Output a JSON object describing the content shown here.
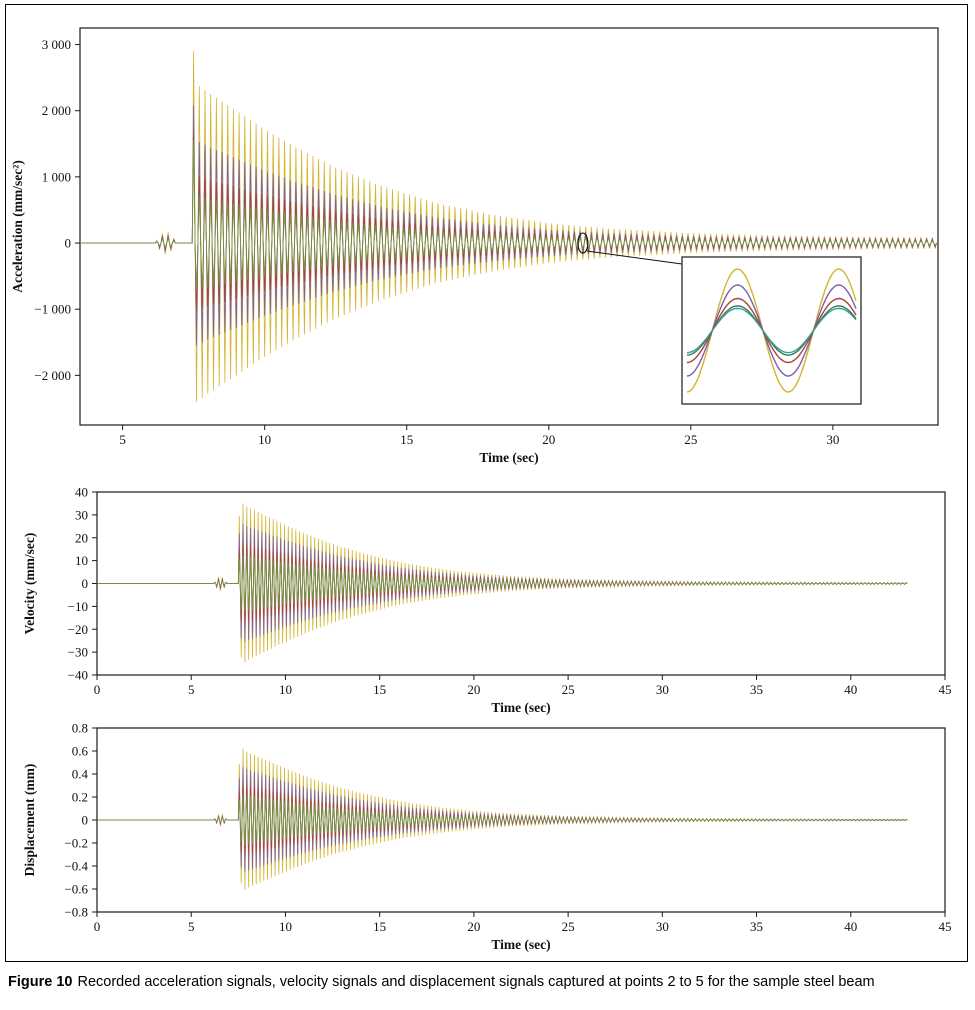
{
  "figure": {
    "caption_label": "Figure 10",
    "caption_text": "Recorded acceleration signals, velocity signals and displacement signals captured at points 2 to 5 for the sample steel beam"
  },
  "chart_data": [
    {
      "id": "acceleration",
      "type": "line",
      "title": "",
      "xlabel": "Time (sec)",
      "ylabel": "Acceleration (mm/sec²)",
      "xlim": [
        3.5,
        33.7
      ],
      "ylim": [
        -2750,
        3250
      ],
      "xticks": [
        5,
        10,
        15,
        20,
        25,
        30
      ],
      "xtick_labels": [
        "5",
        "10",
        "15",
        "20",
        "25",
        "30"
      ],
      "yticks": [
        -2000,
        -1000,
        0,
        1000,
        2000,
        3000
      ],
      "ytick_labels": [
        "−2 000",
        "−1 000",
        "0",
        "1 000",
        "2 000",
        "3 000"
      ],
      "grid": false,
      "legend": null,
      "frequency_hz": 5.0,
      "burst_time": 7.45,
      "data_start": 3.5,
      "data_end": 33.7,
      "blip": {
        "t_start": 6.15,
        "t_end": 6.9
      },
      "series": [
        {
          "name": "Point 2",
          "color": "#d4b42e",
          "blip_amp": 170,
          "envelope_t": [
            7.45,
            7.6,
            8.0,
            9.0,
            10.0,
            11.0,
            12.5,
            14.0,
            16.0,
            18.0,
            20.0,
            22.0,
            25.0,
            28.0,
            31.0,
            33.7
          ],
          "envelope_a": [
            3150,
            2400,
            2280,
            2000,
            1720,
            1470,
            1140,
            880,
            610,
            430,
            300,
            220,
            150,
            115,
            95,
            85
          ]
        },
        {
          "name": "Point 3",
          "color": "#7d5fa6",
          "blip_amp": 130,
          "envelope_t": [
            7.45,
            7.6,
            8.0,
            9.0,
            10.0,
            11.0,
            12.5,
            14.0,
            16.0,
            18.0,
            20.0,
            22.0,
            25.0,
            28.0,
            31.0,
            33.7
          ],
          "envelope_a": [
            2350,
            1550,
            1460,
            1280,
            1100,
            940,
            730,
            560,
            390,
            280,
            200,
            150,
            105,
            80,
            68,
            62
          ]
        },
        {
          "name": "Point 4",
          "color": "#a8423a",
          "blip_amp": 95,
          "envelope_t": [
            7.45,
            7.6,
            8.0,
            9.0,
            10.0,
            11.0,
            12.5,
            14.0,
            16.0,
            18.0,
            20.0,
            22.0,
            25.0,
            28.0,
            31.0,
            33.7
          ],
          "envelope_a": [
            1900,
            1020,
            960,
            845,
            730,
            625,
            485,
            375,
            260,
            185,
            135,
            100,
            72,
            56,
            48,
            44
          ]
        },
        {
          "name": "Point 5",
          "color": "#6e9b42",
          "blip_amp": 70,
          "envelope_t": [
            7.45,
            7.6,
            8.0,
            9.0,
            10.0,
            11.0,
            12.5,
            14.0,
            16.0,
            18.0,
            20.0,
            22.0,
            25.0,
            28.0,
            31.0,
            33.7
          ],
          "envelope_a": [
            1950,
            720,
            675,
            590,
            510,
            435,
            340,
            262,
            182,
            130,
            95,
            72,
            52,
            42,
            36,
            33
          ]
        }
      ],
      "annotation": {
        "ellipse_t": 21.2
      },
      "inset": {
        "description": "zoomed view of oscillations near t = 21 sec",
        "cycles": 1.67,
        "phase": -1.5708,
        "colors": [
          "#d4b42e",
          "#7d5fa6",
          "#a8423a",
          "#2f7d5b",
          "#3f9e8f"
        ],
        "amplitudes": [
          1.0,
          0.74,
          0.52,
          0.4,
          0.36
        ]
      }
    },
    {
      "id": "velocity",
      "type": "line",
      "title": "",
      "xlabel": "Time (sec)",
      "ylabel": "Velocity (mm/sec)",
      "xlim": [
        0,
        45
      ],
      "ylim": [
        -40,
        40
      ],
      "xticks": [
        0,
        5,
        10,
        15,
        20,
        25,
        30,
        35,
        40,
        45
      ],
      "xtick_labels": [
        "0",
        "5",
        "10",
        "15",
        "20",
        "25",
        "30",
        "35",
        "40",
        "45"
      ],
      "yticks": [
        -40,
        -30,
        -20,
        -10,
        0,
        10,
        20,
        30,
        40
      ],
      "ytick_labels": [
        "−40",
        "−30",
        "−20",
        "−10",
        "0",
        "10",
        "20",
        "30",
        "40"
      ],
      "grid": false,
      "legend": null,
      "frequency_hz": 5.0,
      "burst_time": 7.5,
      "data_start": 0,
      "data_end": 43,
      "blip": {
        "t_start": 6.2,
        "t_end": 6.9
      },
      "series": [
        {
          "name": "Point 2",
          "color": "#d4b42e",
          "blip_amp": 3.2,
          "envelope_t": [
            7.5,
            7.75,
            8.0,
            9.0,
            10.0,
            11.0,
            12.5,
            14.0,
            16.0,
            18.0,
            20.0,
            22.0,
            25.0,
            28.0,
            32.0,
            36.0,
            40.0,
            43.0
          ],
          "envelope_a": [
            28,
            35,
            33.5,
            29.5,
            25.5,
            22,
            17.2,
            13.5,
            9.4,
            6.6,
            4.6,
            3.3,
            2.0,
            1.3,
            0.85,
            0.6,
            0.5,
            0.45
          ]
        },
        {
          "name": "Point 3",
          "color": "#7d5fa6",
          "blip_amp": 2.4,
          "envelope_t": [
            7.5,
            7.75,
            8.0,
            9.0,
            10.0,
            11.0,
            12.5,
            14.0,
            16.0,
            18.0,
            20.0,
            22.0,
            25.0,
            28.0,
            32.0,
            36.0,
            40.0,
            43.0
          ],
          "envelope_a": [
            21,
            26,
            25,
            22,
            19,
            16.4,
            12.8,
            10.1,
            7.0,
            4.9,
            3.4,
            2.5,
            1.5,
            1.0,
            0.63,
            0.45,
            0.37,
            0.34
          ]
        },
        {
          "name": "Point 4",
          "color": "#a8423a",
          "blip_amp": 1.7,
          "envelope_t": [
            7.5,
            7.75,
            8.0,
            9.0,
            10.0,
            11.0,
            12.5,
            14.0,
            16.0,
            18.0,
            20.0,
            22.0,
            25.0,
            28.0,
            32.0,
            36.0,
            40.0,
            43.0
          ],
          "envelope_a": [
            14.5,
            17.5,
            16.8,
            14.8,
            12.8,
            11.0,
            8.6,
            6.8,
            4.7,
            3.3,
            2.3,
            1.65,
            1.0,
            0.66,
            0.42,
            0.3,
            0.25,
            0.23
          ]
        },
        {
          "name": "Point 5",
          "color": "#6e9b42",
          "blip_amp": 1.2,
          "envelope_t": [
            7.5,
            7.75,
            8.0,
            9.0,
            10.0,
            11.0,
            12.5,
            14.0,
            16.0,
            18.0,
            20.0,
            22.0,
            25.0,
            28.0,
            32.0,
            36.0,
            40.0,
            43.0
          ],
          "envelope_a": [
            10.5,
            12.5,
            12.0,
            10.6,
            9.1,
            7.85,
            6.15,
            4.85,
            3.36,
            2.36,
            1.64,
            1.18,
            0.71,
            0.47,
            0.3,
            0.21,
            0.18,
            0.16
          ]
        }
      ]
    },
    {
      "id": "displacement",
      "type": "line",
      "title": "",
      "xlabel": "Time (sec)",
      "ylabel": "Displacement (mm)",
      "xlim": [
        0,
        45
      ],
      "ylim": [
        -0.8,
        0.8
      ],
      "xticks": [
        0,
        5,
        10,
        15,
        20,
        25,
        30,
        35,
        40,
        45
      ],
      "xtick_labels": [
        "0",
        "5",
        "10",
        "15",
        "20",
        "25",
        "30",
        "35",
        "40",
        "45"
      ],
      "yticks": [
        -0.8,
        -0.6,
        -0.4,
        -0.2,
        0,
        0.2,
        0.4,
        0.6,
        0.8
      ],
      "ytick_labels": [
        "−0.8",
        "−0.6",
        "−0.4",
        "−0.2",
        "0",
        "0.2",
        "0.4",
        "0.6",
        "0.8"
      ],
      "grid": false,
      "legend": null,
      "frequency_hz": 5.0,
      "burst_time": 7.5,
      "data_start": 0,
      "data_end": 43,
      "blip": {
        "t_start": 6.2,
        "t_end": 6.9
      },
      "series": [
        {
          "name": "Point 2",
          "color": "#d4b42e",
          "blip_amp": 0.055,
          "envelope_t": [
            7.5,
            7.75,
            8.0,
            9.0,
            10.0,
            11.0,
            12.5,
            14.0,
            16.0,
            18.0,
            20.0,
            22.0,
            25.0,
            28.0,
            32.0,
            36.0,
            40.0,
            43.0
          ],
          "envelope_a": [
            0.45,
            0.62,
            0.59,
            0.52,
            0.45,
            0.385,
            0.3,
            0.235,
            0.163,
            0.114,
            0.08,
            0.057,
            0.034,
            0.022,
            0.014,
            0.01,
            0.008,
            0.007
          ]
        },
        {
          "name": "Point 3",
          "color": "#7d5fa6",
          "blip_amp": 0.04,
          "envelope_t": [
            7.5,
            7.75,
            8.0,
            9.0,
            10.0,
            11.0,
            12.5,
            14.0,
            16.0,
            18.0,
            20.0,
            22.0,
            25.0,
            28.0,
            32.0,
            36.0,
            40.0,
            43.0
          ],
          "envelope_a": [
            0.34,
            0.46,
            0.44,
            0.39,
            0.335,
            0.287,
            0.224,
            0.175,
            0.122,
            0.085,
            0.06,
            0.042,
            0.026,
            0.017,
            0.01,
            0.0075,
            0.006,
            0.0055
          ]
        },
        {
          "name": "Point 4",
          "color": "#a8423a",
          "blip_amp": 0.028,
          "envelope_t": [
            7.5,
            7.75,
            8.0,
            9.0,
            10.0,
            11.0,
            12.5,
            14.0,
            16.0,
            18.0,
            20.0,
            22.0,
            25.0,
            28.0,
            32.0,
            36.0,
            40.0,
            43.0
          ],
          "envelope_a": [
            0.23,
            0.31,
            0.295,
            0.26,
            0.224,
            0.192,
            0.15,
            0.117,
            0.081,
            0.057,
            0.04,
            0.028,
            0.017,
            0.011,
            0.007,
            0.005,
            0.004,
            0.0037
          ]
        },
        {
          "name": "Point 5",
          "color": "#6e9b42",
          "blip_amp": 0.02,
          "envelope_t": [
            7.5,
            7.75,
            8.0,
            9.0,
            10.0,
            11.0,
            12.5,
            14.0,
            16.0,
            18.0,
            20.0,
            22.0,
            25.0,
            28.0,
            32.0,
            36.0,
            40.0,
            43.0
          ],
          "envelope_a": [
            0.165,
            0.222,
            0.212,
            0.187,
            0.161,
            0.138,
            0.108,
            0.084,
            0.058,
            0.041,
            0.029,
            0.02,
            0.012,
            0.008,
            0.005,
            0.0036,
            0.0029,
            0.0027
          ]
        }
      ]
    }
  ]
}
